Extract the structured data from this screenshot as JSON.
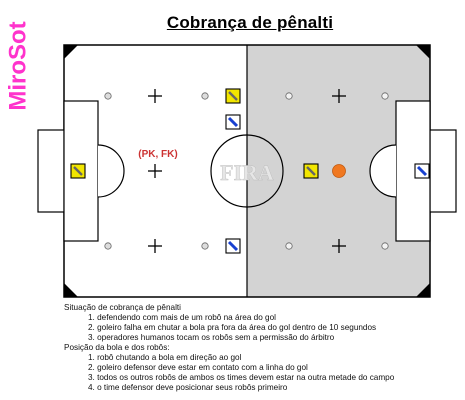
{
  "brand": {
    "text": "MiroSot",
    "color": "#ff33cc"
  },
  "title": "Cobrança de pênalti",
  "field": {
    "left_half_color": "#ffffff",
    "right_half_color": "#d3d3d3",
    "center_text": "FIRA",
    "zone_label": "(PK, FK)",
    "zone_label_color": "#cc3333",
    "ball_color": "#f07820",
    "team_yellow": "#f2e600",
    "team_blue": "#1840d0"
  },
  "notes": {
    "heading1": "Situação de cobrança de pênalti",
    "list1": [
      "1. defendendo com mais de um robô na área do gol",
      "2. goleiro falha em chutar a bola pra fora da área do gol dentro de 10 segundos",
      "3. operadores humanos tocam os robôs sem a permissão do árbitro"
    ],
    "heading2": "Posição da bola e dos robôs:",
    "list2": [
      "1. robô chutando a bola em direção ao gol",
      "2. goleiro defensor deve estar em contato com a linha do gol",
      "3. todos os outros robôs de ambos os times devem estar na outra metade do campo",
      "4. o time defensor deve posicionar seus robôs primeiro"
    ]
  }
}
